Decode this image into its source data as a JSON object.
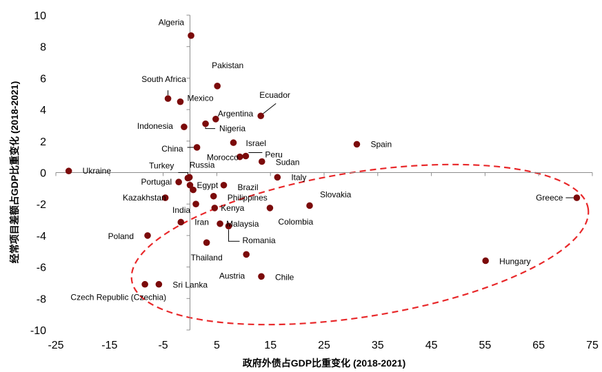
{
  "chart_data": {
    "type": "scatter",
    "title": "",
    "xlabel": "政府外债占GDP比重变化 (2018-2021)",
    "ylabel": "经常项目差额占GDP比重变化 (2018-2021)",
    "xlim": [
      -25,
      75
    ],
    "ylim": [
      -10,
      10
    ],
    "x_ticks": [
      "-25",
      "-15",
      "-5",
      "5",
      "15",
      "25",
      "35",
      "45",
      "55",
      "65",
      "75"
    ],
    "y_ticks": [
      "10",
      "8",
      "6",
      "4",
      "2",
      "0",
      "-2",
      "-4",
      "-6",
      "-8",
      "-10"
    ],
    "x_tick_values": [
      -25,
      -15,
      -5,
      5,
      15,
      25,
      35,
      45,
      55,
      65,
      75
    ],
    "y_tick_values": [
      10,
      8,
      6,
      4,
      2,
      0,
      -2,
      -4,
      -6,
      -8,
      -10
    ],
    "marker_color": "#7b0a0a",
    "ellipse_color": "#e8282a",
    "points": [
      {
        "label": "Algeria",
        "x": 0.2,
        "y": 8.7
      },
      {
        "label": "Pakistan",
        "x": 5.1,
        "y": 5.5
      },
      {
        "label": "South Africa",
        "x": -4.1,
        "y": 4.7
      },
      {
        "label": "Mexico",
        "x": -1.8,
        "y": 4.5
      },
      {
        "label": "Ecuador",
        "x": 13.2,
        "y": 3.6
      },
      {
        "label": "Argentina",
        "x": 4.8,
        "y": 3.4
      },
      {
        "label": "Nigeria",
        "x": 2.9,
        "y": 3.1
      },
      {
        "label": "Indonesia",
        "x": -1.1,
        "y": 2.9
      },
      {
        "label": "Israel",
        "x": 8.1,
        "y": 1.9
      },
      {
        "label": "China",
        "x": 1.3,
        "y": 1.6
      },
      {
        "label": "Morocco",
        "x": 9.3,
        "y": 1.0
      },
      {
        "label": "Peru",
        "x": 10.4,
        "y": 1.05
      },
      {
        "label": "Sudan",
        "x": 13.4,
        "y": 0.7
      },
      {
        "label": "Spain",
        "x": 31.1,
        "y": 1.8
      },
      {
        "label": "Ukraine",
        "x": -22.6,
        "y": 0.1
      },
      {
        "label": "Turkey",
        "x": -0.4,
        "y": -0.35
      },
      {
        "label": "Russia",
        "x": -0.1,
        "y": -0.3
      },
      {
        "label": "Italy",
        "x": 16.3,
        "y": -0.3
      },
      {
        "label": "Portugal",
        "x": -2.1,
        "y": -0.6
      },
      {
        "label": "Egypt",
        "x": 0.0,
        "y": -0.8
      },
      {
        "label": "Brazil",
        "x": 6.3,
        "y": -0.8
      },
      {
        "label": "Egypt (2)",
        "x": 0.6,
        "y": -1.1,
        "hide_label": true
      },
      {
        "label": "Philippines",
        "x": 4.4,
        "y": -1.5
      },
      {
        "label": "Kazakhstan",
        "x": -4.6,
        "y": -1.6
      },
      {
        "label": "Slovakia",
        "x": 22.3,
        "y": -2.1
      },
      {
        "label": "India",
        "x": 1.1,
        "y": -2.0
      },
      {
        "label": "Kenya",
        "x": 4.6,
        "y": -2.25
      },
      {
        "label": "Colombia",
        "x": 14.9,
        "y": -2.25
      },
      {
        "label": "Greece",
        "x": 72.1,
        "y": -1.6
      },
      {
        "label": "Iran",
        "x": -1.7,
        "y": -3.15
      },
      {
        "label": "Malaysia",
        "x": 5.6,
        "y": -3.25
      },
      {
        "label": "Romania",
        "x": 7.2,
        "y": -3.4
      },
      {
        "label": "Poland",
        "x": -7.9,
        "y": -4.0
      },
      {
        "label": "Thailand",
        "x": 3.1,
        "y": -4.45
      },
      {
        "label": "Austria",
        "x": 10.5,
        "y": -5.2
      },
      {
        "label": "Hungary",
        "x": 55.1,
        "y": -5.6
      },
      {
        "label": "Chile",
        "x": 13.3,
        "y": -6.6
      },
      {
        "label": "Sri Lanka",
        "x": -5.8,
        "y": -7.1
      },
      {
        "label": "Czech Republic (Czechia)",
        "x": -8.4,
        "y": -7.1
      }
    ]
  }
}
